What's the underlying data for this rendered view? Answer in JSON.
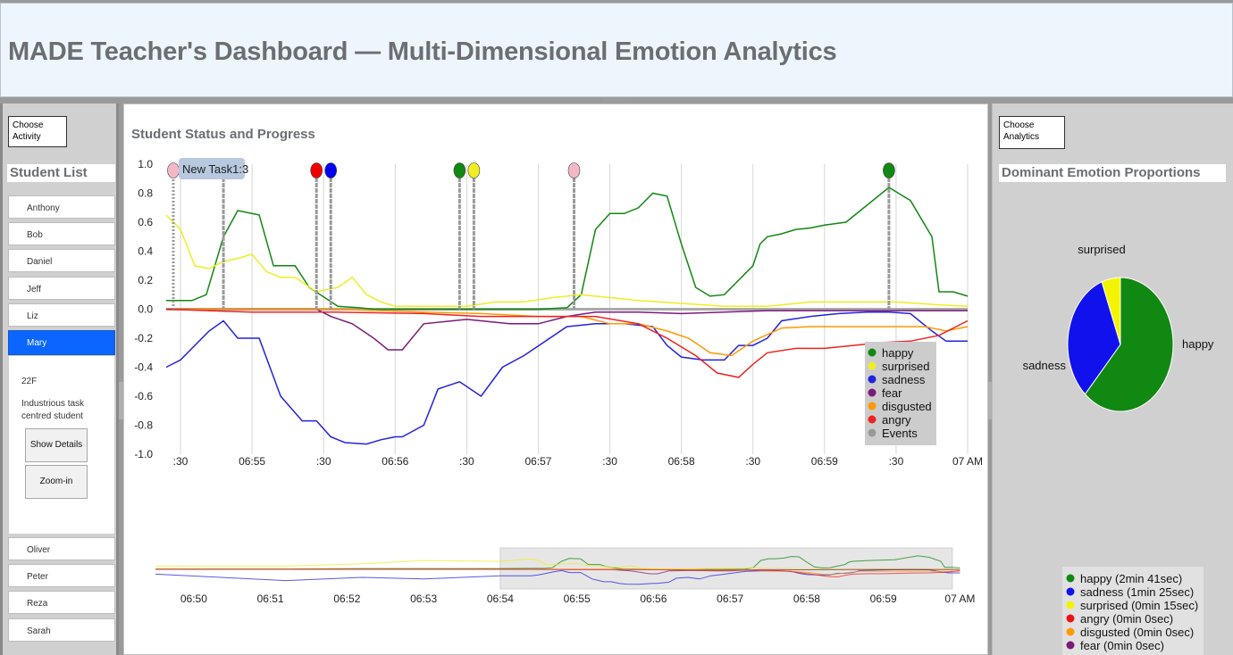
{
  "header": {
    "title": "MADE Teacher's Dashboard — Multi-Dimensional Emotion Analytics"
  },
  "left": {
    "choose_activity": "Choose Activity",
    "student_list_title": "Student List",
    "students_top": [
      "Anthony",
      "Bob",
      "Daniel",
      "Jeff",
      "Liz",
      "Mary"
    ],
    "selected_student": "Mary",
    "details": {
      "age": "22F",
      "desc_line1": "Industrious task",
      "desc_line2": "centred student",
      "show_details": "Show Details",
      "zoom_in": "Zoom-in"
    },
    "students_bottom": [
      "Oliver",
      "Peter",
      "Reza",
      "Sarah"
    ]
  },
  "main": {
    "title": "Student Status and Progress"
  },
  "chart_data": [
    {
      "type": "line",
      "title": "Student Status and Progress",
      "ylim": [
        -1.0,
        1.0
      ],
      "y_ticks": [
        "1.0",
        "0.8",
        "0.6",
        "0.4",
        "0.2",
        "0.0",
        "-0.2",
        "-0.4",
        "-0.6",
        "-0.8",
        "-1.0"
      ],
      "x_ticks": [
        ":30",
        "06:55",
        ":30",
        "06:56",
        ":30",
        "06:57",
        ":30",
        "06:58",
        ":30",
        "06:59",
        ":30",
        "07 AM"
      ],
      "x_range_minutes": [
        54.4,
        60.0
      ],
      "x_unit": "minutes past 06:00",
      "series": [
        {
          "name": "happy",
          "color": "#118811",
          "x": [
            54.4,
            54.58,
            54.68,
            54.8,
            54.9,
            55.05,
            55.15,
            55.3,
            55.4,
            55.6,
            55.75,
            55.85,
            55.95,
            56.05,
            56.2,
            56.5,
            56.8,
            57.0,
            57.2,
            57.3,
            57.4,
            57.5,
            57.6,
            57.7,
            57.8,
            57.9,
            58.0,
            58.1,
            58.2,
            58.3,
            58.4,
            58.5,
            58.55,
            58.6,
            58.7,
            58.8,
            58.9,
            59.0,
            59.15,
            59.3,
            59.45,
            59.6,
            59.75,
            59.8,
            59.9,
            60.0
          ],
          "values": [
            0.06,
            0.06,
            0.1,
            0.5,
            0.68,
            0.65,
            0.3,
            0.3,
            0.15,
            0.02,
            0.01,
            0.0,
            0.0,
            0.0,
            0.0,
            0.0,
            0.0,
            0.0,
            0.01,
            0.1,
            0.55,
            0.66,
            0.66,
            0.7,
            0.8,
            0.78,
            0.45,
            0.15,
            0.09,
            0.1,
            0.2,
            0.3,
            0.45,
            0.5,
            0.52,
            0.55,
            0.56,
            0.58,
            0.6,
            0.72,
            0.84,
            0.75,
            0.5,
            0.12,
            0.12,
            0.09
          ]
        },
        {
          "name": "surprised",
          "color": "#eeee22",
          "x": [
            54.4,
            54.5,
            54.6,
            54.7,
            54.8,
            54.9,
            55.0,
            55.1,
            55.2,
            55.3,
            55.45,
            55.6,
            55.7,
            55.8,
            55.9,
            56.0,
            56.2,
            56.5,
            56.7,
            56.9,
            57.1,
            57.3,
            57.5,
            57.7,
            58.0,
            58.3,
            58.6,
            58.9,
            59.2,
            59.5,
            59.8,
            60.0
          ],
          "values": [
            0.65,
            0.55,
            0.3,
            0.28,
            0.33,
            0.35,
            0.38,
            0.26,
            0.22,
            0.22,
            0.12,
            0.15,
            0.22,
            0.1,
            0.05,
            0.02,
            0.02,
            0.02,
            0.05,
            0.05,
            0.08,
            0.1,
            0.08,
            0.06,
            0.04,
            0.02,
            0.02,
            0.05,
            0.05,
            0.05,
            0.03,
            0.02
          ]
        },
        {
          "name": "sadness",
          "color": "#2222dd",
          "x": [
            54.4,
            54.5,
            54.6,
            54.7,
            54.8,
            54.9,
            55.05,
            55.2,
            55.35,
            55.45,
            55.55,
            55.65,
            55.8,
            55.9,
            56.0,
            56.05,
            56.2,
            56.3,
            56.45,
            56.6,
            56.75,
            56.9,
            57.05,
            57.2,
            57.4,
            57.6,
            57.8,
            57.9,
            58.0,
            58.15,
            58.3,
            58.4,
            58.5,
            58.6,
            58.7,
            58.9,
            59.1,
            59.3,
            59.45,
            59.6,
            59.75,
            59.85,
            60.0
          ],
          "values": [
            -0.4,
            -0.35,
            -0.25,
            -0.15,
            -0.08,
            -0.2,
            -0.2,
            -0.6,
            -0.77,
            -0.77,
            -0.88,
            -0.92,
            -0.93,
            -0.9,
            -0.88,
            -0.88,
            -0.8,
            -0.55,
            -0.5,
            -0.6,
            -0.4,
            -0.32,
            -0.22,
            -0.12,
            -0.1,
            -0.1,
            -0.12,
            -0.25,
            -0.33,
            -0.35,
            -0.35,
            -0.25,
            -0.25,
            -0.2,
            -0.08,
            -0.05,
            -0.03,
            -0.02,
            -0.02,
            -0.03,
            -0.15,
            -0.22,
            -0.22
          ]
        },
        {
          "name": "fear",
          "color": "#7a1a7a",
          "x": [
            54.4,
            54.9,
            55.2,
            55.45,
            55.55,
            55.7,
            55.85,
            55.95,
            56.05,
            56.2,
            56.5,
            56.8,
            57.0,
            57.2,
            57.4,
            57.7,
            58.0,
            58.3,
            58.6,
            58.9,
            59.2,
            59.5,
            59.8,
            60.0
          ],
          "values": [
            0.0,
            0.0,
            0.0,
            0.0,
            -0.05,
            -0.1,
            -0.2,
            -0.28,
            -0.28,
            -0.1,
            -0.07,
            -0.1,
            -0.1,
            -0.05,
            -0.02,
            -0.02,
            -0.03,
            -0.02,
            -0.01,
            -0.01,
            -0.01,
            -0.01,
            -0.01,
            -0.01
          ]
        },
        {
          "name": "disgusted",
          "color": "#ff9900",
          "x": [
            54.4,
            55.0,
            55.6,
            56.2,
            56.6,
            57.0,
            57.3,
            57.5,
            57.7,
            57.9,
            58.05,
            58.2,
            58.35,
            58.5,
            58.7,
            58.9,
            59.1,
            59.3,
            59.5,
            59.7,
            59.85,
            60.0
          ],
          "values": [
            0.0,
            0.0,
            0.0,
            -0.02,
            -0.03,
            -0.05,
            -0.05,
            -0.1,
            -0.1,
            -0.15,
            -0.2,
            -0.3,
            -0.32,
            -0.22,
            -0.13,
            -0.12,
            -0.12,
            -0.12,
            -0.12,
            -0.12,
            -0.15,
            -0.12
          ]
        },
        {
          "name": "angry",
          "color": "#ee2222",
          "x": [
            54.4,
            55.0,
            55.6,
            56.2,
            56.6,
            57.0,
            57.4,
            57.7,
            57.9,
            58.1,
            58.25,
            58.4,
            58.5,
            58.6,
            58.8,
            59.0,
            59.2,
            59.4,
            59.6,
            59.8,
            60.0
          ],
          "values": [
            0.0,
            -0.02,
            -0.02,
            -0.03,
            -0.05,
            -0.05,
            -0.05,
            -0.1,
            -0.2,
            -0.32,
            -0.44,
            -0.47,
            -0.38,
            -0.3,
            -0.27,
            -0.27,
            -0.25,
            -0.23,
            -0.22,
            -0.18,
            -0.08
          ]
        }
      ],
      "events": {
        "name": "Events",
        "color": "#999999",
        "x": [
          54.45,
          54.8,
          55.45,
          55.55,
          56.45,
          56.55,
          57.25,
          59.45
        ],
        "colors": [
          "#f4b8c4",
          "#0000ee",
          "#ee0000",
          "#0000ee",
          "#118811",
          "#eeee22",
          "#f4b8c4",
          "#118811"
        ],
        "label": "New Task1:3"
      },
      "legend": [
        "happy",
        "surprised",
        "sadness",
        "fear",
        "disgusted",
        "angry",
        "Events"
      ],
      "legend_position": "bottom-right"
    },
    {
      "type": "line",
      "title": "",
      "x_ticks": [
        "06:50",
        "06:51",
        "06:52",
        "06:53",
        "06:54",
        "06:55",
        "06:56",
        "06:57",
        "06:58",
        "06:59",
        "07 AM"
      ],
      "x_range_minutes": [
        49.5,
        60.1
      ],
      "selection_minutes": [
        54.0,
        59.9
      ]
    },
    {
      "type": "pie",
      "title": "Dominant Emotion Proportions",
      "slices": [
        {
          "label": "happy",
          "seconds": 161,
          "color": "#118811"
        },
        {
          "label": "sadness",
          "seconds": 85,
          "color": "#1111ee"
        },
        {
          "label": "surprised",
          "seconds": 15,
          "color": "#f4f400"
        }
      ],
      "legend": [
        {
          "label": "happy (2min 41sec)",
          "color": "#118811"
        },
        {
          "label": "sadness (1min 25sec)",
          "color": "#1111ee"
        },
        {
          "label": "surprised (0min 15sec)",
          "color": "#f4f400"
        },
        {
          "label": "angry (0min 0sec)",
          "color": "#ee1111"
        },
        {
          "label": "disgusted (0min 0sec)",
          "color": "#ff9900"
        },
        {
          "label": "fear (0min 0sec)",
          "color": "#7a1a7a"
        }
      ]
    }
  ],
  "right": {
    "choose_analytics": "Choose Analytics",
    "dominant_title": "Dominant Emotion Proportions"
  }
}
